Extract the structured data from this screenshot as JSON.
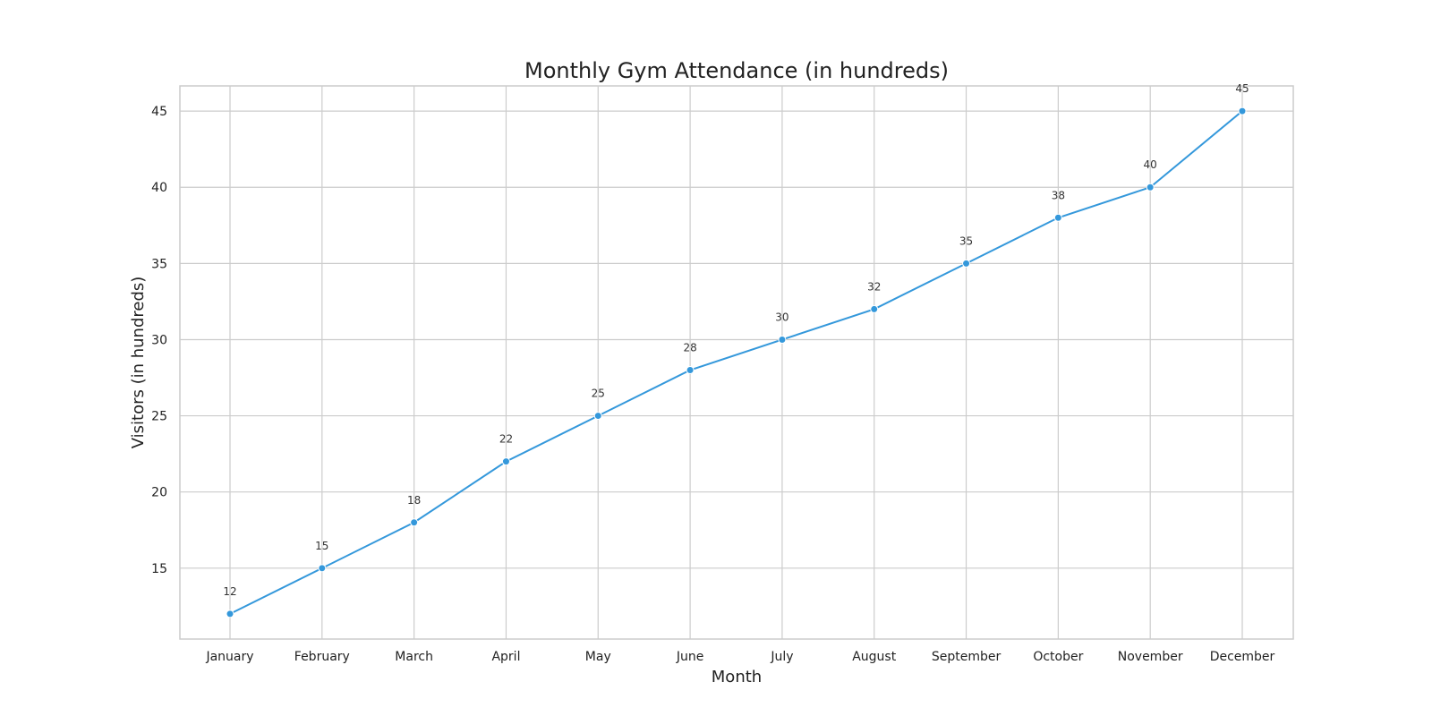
{
  "chart_data": {
    "type": "line",
    "title": "Monthly Gym Attendance (in hundreds)",
    "xlabel": "Month",
    "ylabel": "Visitors (in hundreds)",
    "categories": [
      "January",
      "February",
      "March",
      "April",
      "May",
      "June",
      "July",
      "August",
      "September",
      "October",
      "November",
      "December"
    ],
    "series": [
      {
        "values": [
          12,
          15,
          18,
          22,
          25,
          28,
          30,
          32,
          35,
          38,
          40,
          45
        ]
      }
    ],
    "yticks": [
      15,
      20,
      25,
      30,
      35,
      40,
      45
    ],
    "ylim": [
      10.35,
      46.65
    ],
    "grid": true,
    "data_labels": true,
    "line_color": "#3498db",
    "marker": "circle"
  }
}
